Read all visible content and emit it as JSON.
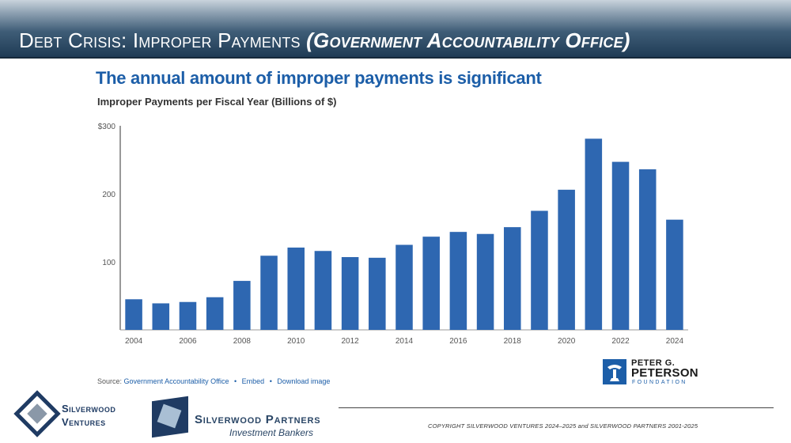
{
  "slide": {
    "title_main": "Debt Crisis: Improper Payments",
    "title_paren": "(Government Accountability Office)"
  },
  "chart_data": {
    "type": "bar",
    "title": "The annual amount of improper payments is significant",
    "subtitle": "Improper Payments per Fiscal Year (Billions of $)",
    "xlabel": "",
    "ylabel": "",
    "categories": [
      "2004",
      "2005",
      "2006",
      "2007",
      "2008",
      "2009",
      "2010",
      "2011",
      "2012",
      "2013",
      "2014",
      "2015",
      "2016",
      "2017",
      "2018",
      "2019",
      "2020",
      "2021",
      "2022",
      "2023",
      "2024"
    ],
    "values": [
      45,
      39,
      41,
      48,
      72,
      109,
      121,
      116,
      107,
      106,
      125,
      137,
      144,
      141,
      151,
      175,
      206,
      281,
      247,
      236,
      162
    ],
    "x_tick_labels": [
      "2004",
      "2006",
      "2008",
      "2010",
      "2012",
      "2014",
      "2016",
      "2018",
      "2020",
      "2022",
      "2024"
    ],
    "y_ticks": [
      {
        "value": 100,
        "label": "100"
      },
      {
        "value": 200,
        "label": "200"
      },
      {
        "value": 300,
        "label": "$300"
      }
    ],
    "ylim": [
      0,
      300
    ],
    "grid": false,
    "legend": "none",
    "bar_color": "#2e67b1"
  },
  "source": {
    "prefix": "Source:",
    "link": "Government Accountability Office",
    "embed": "Embed",
    "download": "Download image",
    "separator": "•"
  },
  "pgpf": {
    "line1": "PETER G.",
    "line2": "PETERSON",
    "line3": "FOUNDATION"
  },
  "footer": {
    "copyright": "COPYRIGHT SILVERWOOD VENTURES 2024–2025 and SILVERWOOD PARTNERS 2001-2025",
    "sv_line1": "Silverwood",
    "sv_line2": "Ventures",
    "sp_line1": "Silverwood Partners",
    "sp_line2": "Investment Bankers"
  },
  "colors": {
    "title_blue": "#1c5ea8",
    "header_dark": "#1f3b55",
    "bar": "#2e67b1"
  }
}
